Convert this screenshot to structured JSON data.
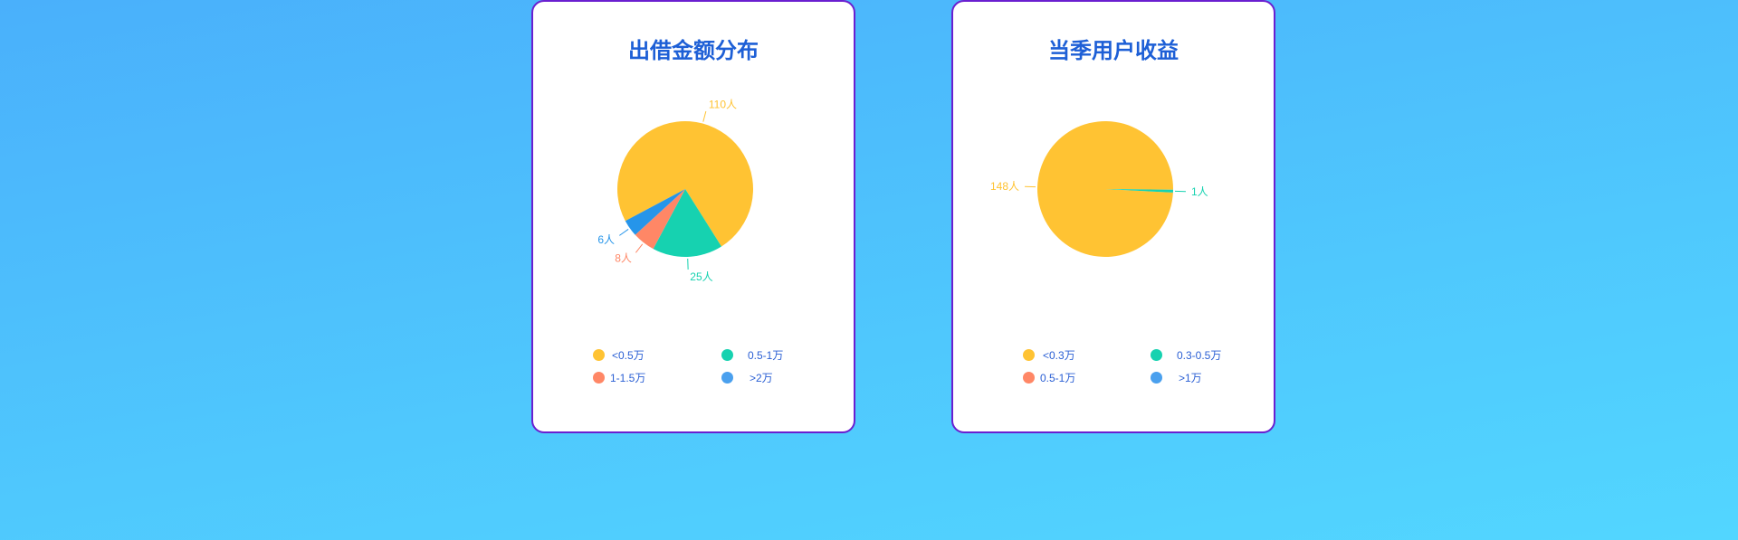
{
  "chart_data": [
    {
      "type": "pie",
      "title": "出借金额分布",
      "slices": [
        {
          "name": "<0.5万",
          "value": 110,
          "label": "110人",
          "color": "#ffc333"
        },
        {
          "name": "0.5-1万",
          "value": 25,
          "label": "25人",
          "color": "#16d2b0"
        },
        {
          "name": "1-1.5万",
          "value": 8,
          "label": "8人",
          "color": "#ff8766"
        },
        {
          "name": ">2万",
          "value": 6,
          "label": "6人",
          "color": "#2695ea"
        }
      ],
      "legend_placement": "bottom"
    },
    {
      "type": "pie",
      "title": "当季用户收益",
      "slices": [
        {
          "name": "<0.3万",
          "value": 148,
          "label": "148人",
          "color": "#ffc333"
        },
        {
          "name": "0.3-0.5万",
          "value": 1,
          "label": "1人",
          "color": "#16d2b0"
        },
        {
          "name": "0.5-1万",
          "value": 0,
          "label": "",
          "color": "#ff8766"
        },
        {
          "name": ">1万",
          "value": 0,
          "label": "",
          "color": "#4aa0ee"
        }
      ],
      "legend_placement": "bottom"
    }
  ]
}
